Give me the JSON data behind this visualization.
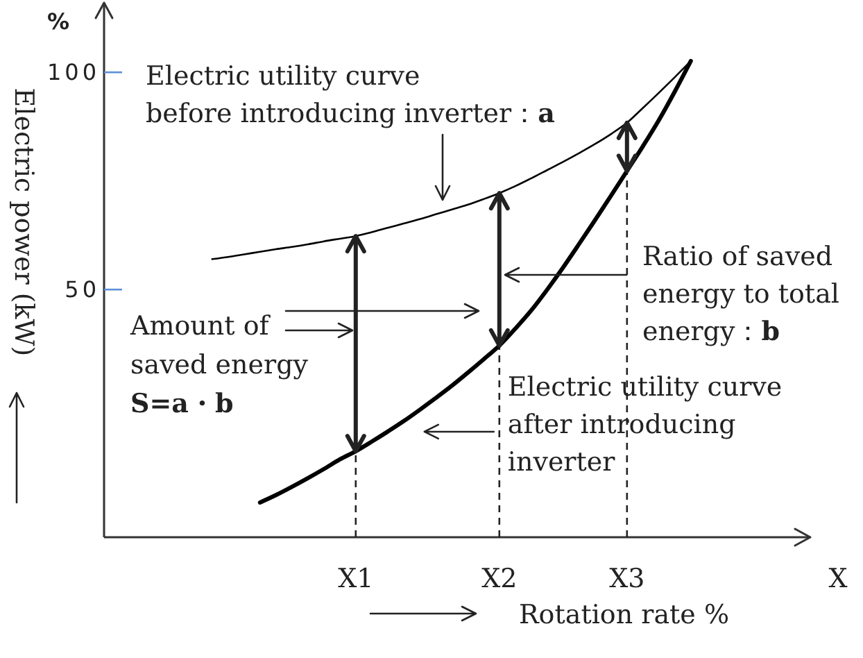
{
  "chart_data": {
    "type": "line",
    "categories": [
      null,
      null,
      null,
      null,
      null,
      null,
      null,
      null,
      null,
      "X1",
      null,
      null,
      null,
      null,
      null,
      null,
      null,
      null,
      "X2",
      null,
      null,
      null,
      null,
      null,
      null,
      null,
      "X3",
      null,
      null,
      null,
      null
    ],
    "series": [
      {
        "color": "#000000",
        "values": [
          57.0,
          57.5,
          58.1,
          58.7,
          59.3,
          59.8,
          60.4,
          61.1,
          61.7,
          62.3,
          63.2,
          64.2,
          65.2,
          66.2,
          67.3,
          68.4,
          69.5,
          70.8,
          72.2,
          73.8,
          75.6,
          77.5,
          79.4,
          81.4,
          83.5,
          85.8,
          88.4,
          91.8,
          95.3,
          98.9,
          102.6
        ]
      },
      {
        "color": "#000000",
        "values": [
          null,
          null,
          null,
          1.0,
          2.7,
          4.6,
          6.6,
          8.7,
          10.9,
          12.8,
          15.0,
          17.3,
          19.7,
          22.3,
          25.0,
          27.8,
          30.8,
          33.9,
          37.1,
          41.0,
          45.2,
          50.0,
          55.1,
          60.5,
          66.0,
          71.6,
          77.3,
          83.0,
          89.0,
          95.6,
          102.6
        ]
      }
    ],
    "xlabel": "Rotation rate %",
    "ylabel": "Electric power (kW)",
    "ylim": [
      -7,
      116
    ],
    "yticks": [
      50,
      100
    ],
    "ref_lines": [
      {
        "axis": "x",
        "value": "X1",
        "line_style": "dashed"
      },
      {
        "axis": "x",
        "value": "X2",
        "line_style": "dashed"
      },
      {
        "axis": "x",
        "value": "X3",
        "line_style": "dashed"
      }
    ],
    "annotations": [
      "Electric utility curve\nbefore introducing inverter：a",
      "Ratio of saved\nenergy to total\nenergy：b",
      "Amount of\nsaved energy\nS=a・b",
      {
        "text": "Electric utility curve\nafter introducing\ninverter",
        "x": "X2",
        "y": 37.1
      },
      "%",
      "X"
    ]
  }
}
